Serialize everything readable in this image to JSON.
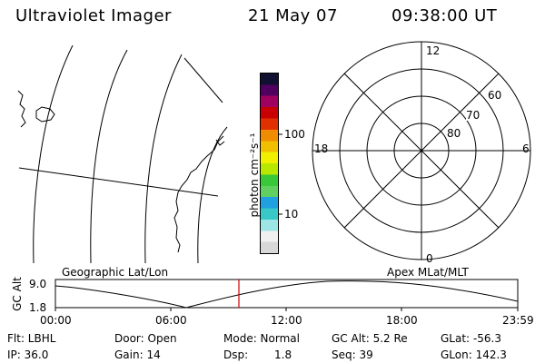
{
  "header": {
    "title": "Ultraviolet Imager",
    "date": "21 May 07",
    "time": "09:38:00 UT"
  },
  "colorbar": {
    "unit_label": "photon cm⁻²s⁻¹",
    "tick_100": "100",
    "tick_10": "10",
    "colors": [
      "#d8d8d8",
      "#f0f0f0",
      "#9ee6e6",
      "#38c8c8",
      "#20a0e0",
      "#60d060",
      "#38c838",
      "#b8e800",
      "#f0f000",
      "#f0c000",
      "#f08c00",
      "#e03000",
      "#c80000",
      "#a00060",
      "#500060",
      "#101030"
    ]
  },
  "polar": {
    "label_12": "12",
    "label_6": "6",
    "label_18": "18",
    "label_0": "0",
    "label_60": "60",
    "label_70": "70",
    "label_80": "80"
  },
  "strip": {
    "left_title": "Geographic Lat/Lon",
    "right_title": "Apex MLat/MLT",
    "axis_label": "GC Alt",
    "ytick_top": "9.0",
    "ytick_bottom": "1.8",
    "xticks": [
      "00:00",
      "06:00",
      "12:00",
      "18:00",
      "23:59"
    ]
  },
  "info": {
    "col1": [
      "Flt: LBHL",
      "IP: 36.0"
    ],
    "col2": [
      "Door: Open",
      "Gain: 14"
    ],
    "col3_row1": "Mode: Normal",
    "col3_row2_key": "Dsp:",
    "col3_row2_val": "1.8",
    "col4": [
      "GC Alt: 5.2 Re",
      "Seq: 39"
    ],
    "col5": [
      "GLat: -56.3",
      "GLon: 142.3"
    ]
  },
  "colors": {
    "foreground": "#000000",
    "background": "#ffffff",
    "time_marker": "#d00000"
  }
}
